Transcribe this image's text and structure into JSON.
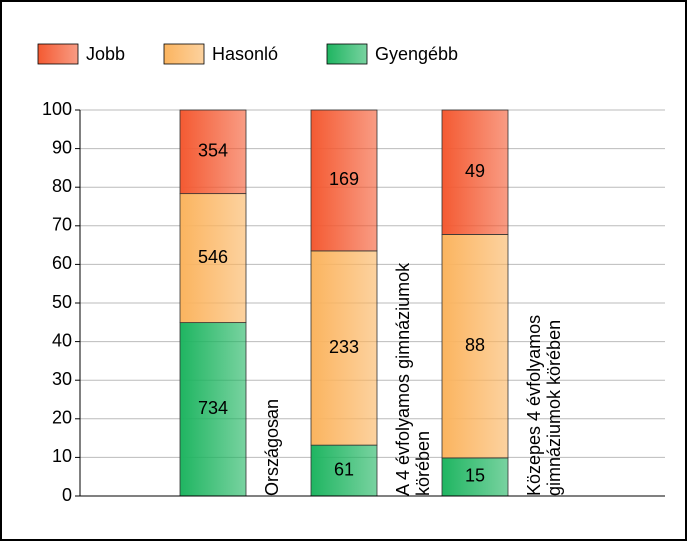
{
  "chart_data": {
    "type": "bar",
    "stack": "percent",
    "categories": [
      "Országosan",
      "A 4 évfolyamos gimnáziumok körében",
      "Közepes 4 évfolyamos gimnáziumok körében"
    ],
    "series": [
      {
        "name": "Gyengébb",
        "color": "#1fb561",
        "values": [
          734,
          61,
          15
        ]
      },
      {
        "name": "Hasonló",
        "color": "#fbb45f",
        "values": [
          546,
          233,
          88
        ]
      },
      {
        "name": "Jobb",
        "color": "#f45a32",
        "values": [
          354,
          169,
          49
        ]
      }
    ],
    "legend_order": [
      2,
      1,
      0
    ],
    "ylim": [
      0,
      100
    ],
    "yticks": [
      0,
      10,
      20,
      30,
      40,
      50,
      60,
      70,
      80,
      90,
      100
    ],
    "grid": true
  }
}
